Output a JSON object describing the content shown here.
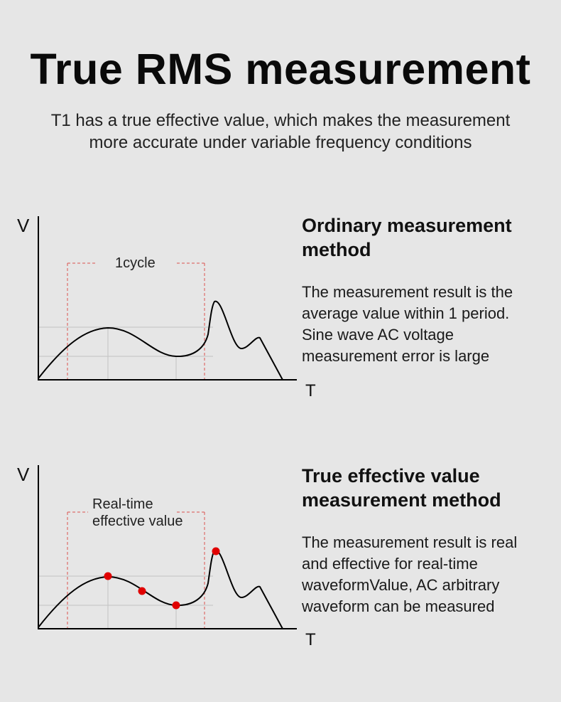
{
  "title": "True RMS measurement",
  "subtitle": {
    "line1": "T1 has a true effective value, which makes the measurement",
    "line2": "more accurate under variable frequency conditions"
  },
  "colors": {
    "background": "#e6e6e6",
    "bracket": "#d9534f",
    "marker": "#e00000",
    "grid": "#c2c2c2",
    "curve": "#000000"
  },
  "panels": [
    {
      "axis_y": "V",
      "axis_x": "T",
      "bracket_label": [
        "1cycle"
      ],
      "heading": [
        "Ordinary measurement",
        "method"
      ],
      "body": [
        "The measurement result is the",
        "average value within 1 period.",
        "Sine wave AC voltage",
        "measurement error is large"
      ]
    },
    {
      "axis_y": "V",
      "axis_x": "T",
      "bracket_label": [
        "Real-time",
        "effective value"
      ],
      "heading": [
        "True effective value",
        "measurement method"
      ],
      "body": [
        "The measurement result is real",
        "and effective for real-time",
        "waveformValue, AC arbitrary",
        "waveform can be measured"
      ],
      "markers": 4
    }
  ]
}
